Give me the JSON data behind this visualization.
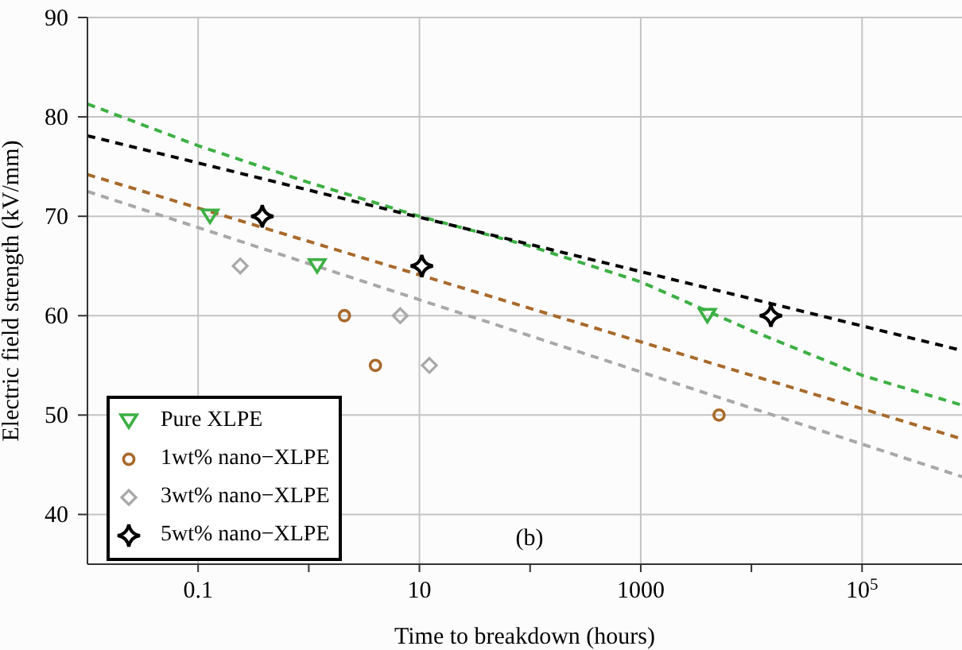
{
  "chart_data": {
    "type": "scatter",
    "xlabel": "Time to breakdown (hours)",
    "ylabel": "Electric field strength (kV/mm)",
    "log": "x",
    "xlim": [
      0.01,
      800000
    ],
    "ylim": [
      35,
      90
    ],
    "xticks": [
      0.1,
      {
        "value": 1,
        "label": null
      },
      10,
      {
        "value": 100,
        "label": null
      },
      1000,
      {
        "value": 10000,
        "label": null
      },
      {
        "value": 100000,
        "label": "10$^{5}$"
      }
    ],
    "yticks": [
      40,
      50,
      60,
      70,
      80,
      90
    ],
    "grid": true,
    "legend": "bottom left",
    "annotations": [
      "(b)"
    ],
    "series": [
      {
        "name": "Pure XLPE",
        "color": "#3cb043",
        "marker": "triangle",
        "x": [
          0.128,
          1.19,
          4000
        ],
        "values": [
          70,
          65,
          60
        ]
      },
      {
        "name": "1wt% nano−XLPE",
        "color": "#a8692a",
        "marker": "circle",
        "x": [
          2.1,
          4.0,
          5100
        ],
        "values": [
          60,
          55,
          50
        ]
      },
      {
        "name": "3wt% nano−XLPE",
        "color": "#a8a8a8",
        "marker": "diamond",
        "x": [
          0.24,
          6.7,
          12.3
        ],
        "values": [
          65,
          60,
          55
        ]
      },
      {
        "name": "5wt% nano−XLPE",
        "color": "#000000",
        "marker": "star",
        "x": [
          0.38,
          10.5,
          15000
        ],
        "values": [
          70,
          65,
          60
        ]
      },
      {
        "type": "line",
        "line_style": "dashed",
        "color": "#3cb043",
        "x": [
          0.01,
          0.1,
          1,
          10,
          100,
          1000,
          10000,
          100000,
          800000
        ],
        "values": [
          81.3,
          77.1,
          73.4,
          70,
          67,
          63.4,
          58.5,
          54,
          51
        ]
      },
      {
        "type": "line",
        "line_style": "dashed",
        "color": "#a8692a",
        "x": [
          0.01,
          800000
        ],
        "values": [
          74.2,
          47.6
        ]
      },
      {
        "type": "line",
        "line_style": "dashed",
        "color": "#a8a8a8",
        "x": [
          0.01,
          800000
        ],
        "values": [
          72.5,
          43.8
        ]
      },
      {
        "type": "line",
        "line_style": "dashed",
        "color": "#000000",
        "x": [
          0.01,
          800000
        ],
        "values": [
          78.1,
          56.5
        ]
      }
    ]
  }
}
